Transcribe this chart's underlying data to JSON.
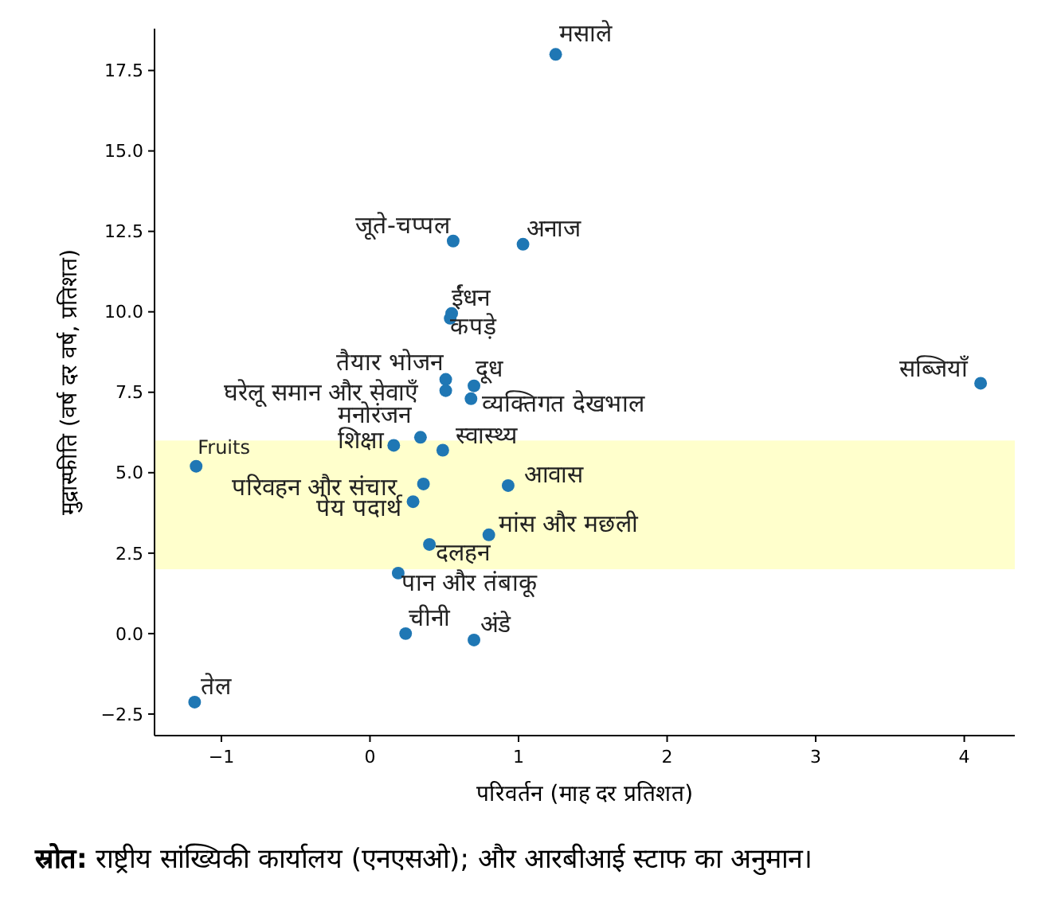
{
  "chart_data": {
    "type": "scatter",
    "ylabel": "मुद्रास्फीति (वर्ष दर वर्ष, प्रतिशत)",
    "xlabel": "परिवर्तन (माह दर प्रतिशत)",
    "series": [
      {
        "color": "#1f77b4",
        "x": [
          1.25,
          0.56,
          1.03,
          0.55,
          0.54,
          0.51,
          0.51,
          0.7,
          0.68,
          0.34,
          0.16,
          0.49,
          -1.17,
          0.36,
          0.93,
          0.29,
          0.8,
          0.4,
          0.19,
          0.24,
          0.7,
          -1.18,
          4.11
        ],
        "values": [
          18.0,
          12.2,
          12.1,
          9.95,
          9.8,
          7.9,
          7.55,
          7.7,
          7.3,
          6.1,
          5.85,
          5.7,
          5.2,
          4.65,
          4.6,
          4.1,
          3.07,
          2.77,
          1.88,
          0.0,
          -0.2,
          -2.13,
          7.78
        ]
      }
    ],
    "annotations": [
      {
        "text": "मसाले",
        "x": 1.25,
        "y": 18.0
      },
      {
        "text": "जूते-चप्पल",
        "x": 0.56,
        "y": 12.2
      },
      {
        "text": "अनाज",
        "x": 1.03,
        "y": 12.1
      },
      {
        "text": "ईंधन",
        "x": 0.55,
        "y": 9.95
      },
      {
        "text": "कपड़े",
        "x": 0.54,
        "y": 9.8
      },
      {
        "text": "तैयार भोजन",
        "x": 0.51,
        "y": 7.9
      },
      {
        "text": "घरेलू समान और सेवाएँ",
        "x": 0.51,
        "y": 7.55
      },
      {
        "text": "दूध",
        "x": 0.7,
        "y": 7.7
      },
      {
        "text": "व्यक्तिगत देखभाल",
        "x": 0.68,
        "y": 7.3
      },
      {
        "text": "मनोरंजन",
        "x": 0.34,
        "y": 6.1
      },
      {
        "text": "शिक्षा",
        "x": 0.16,
        "y": 5.85
      },
      {
        "text": "स्वास्थ्य",
        "x": 0.49,
        "y": 5.7
      },
      {
        "text": "Fruits",
        "x": -1.17,
        "y": 5.2
      },
      {
        "text": "परिवहन और संचार",
        "x": 0.36,
        "y": 4.65
      },
      {
        "text": "आवास",
        "x": 0.93,
        "y": 4.6
      },
      {
        "text": "पेय पदार्थ",
        "x": 0.29,
        "y": 4.1
      },
      {
        "text": "मांस और मछली",
        "x": 0.8,
        "y": 3.07
      },
      {
        "text": "दलहन",
        "x": 0.4,
        "y": 2.77
      },
      {
        "text": "पान और तंबाकू",
        "x": 0.19,
        "y": 1.88
      },
      {
        "text": "चीनी",
        "x": 0.24,
        "y": 0.0
      },
      {
        "text": "अंडे",
        "x": 0.7,
        "y": -0.2
      },
      {
        "text": "तेल",
        "x": -1.18,
        "y": -2.13
      },
      {
        "text": "सब्जियाँ",
        "x": 4.11,
        "y": 7.78
      },
      "स्रोत: राष्ट्रीय सांख्यिकी कार्यालय (एनएसओ); और आरबीआई स्टाफ का अनुमान।"
    ],
    "bands": [
      {
        "axis": "y",
        "from": 2,
        "to": 6,
        "color": "#ffff99"
      }
    ],
    "xlim": [
      -1.45,
      4.34
    ],
    "ylim": [
      -3.17,
      18.8
    ],
    "xticks": [
      {
        "value": -1,
        "label": "−1"
      },
      0,
      1,
      2,
      3,
      4
    ],
    "yticks": [
      {
        "value": -2.5,
        "label": "−2.5"
      },
      {
        "value": 0,
        "label": "0.0"
      },
      2.5,
      {
        "value": 5,
        "label": "5.0"
      },
      7.5,
      {
        "value": 10,
        "label": "10.0"
      },
      12.5,
      {
        "value": 15,
        "label": "15.0"
      },
      17.5
    ],
    "marker": "circle"
  }
}
